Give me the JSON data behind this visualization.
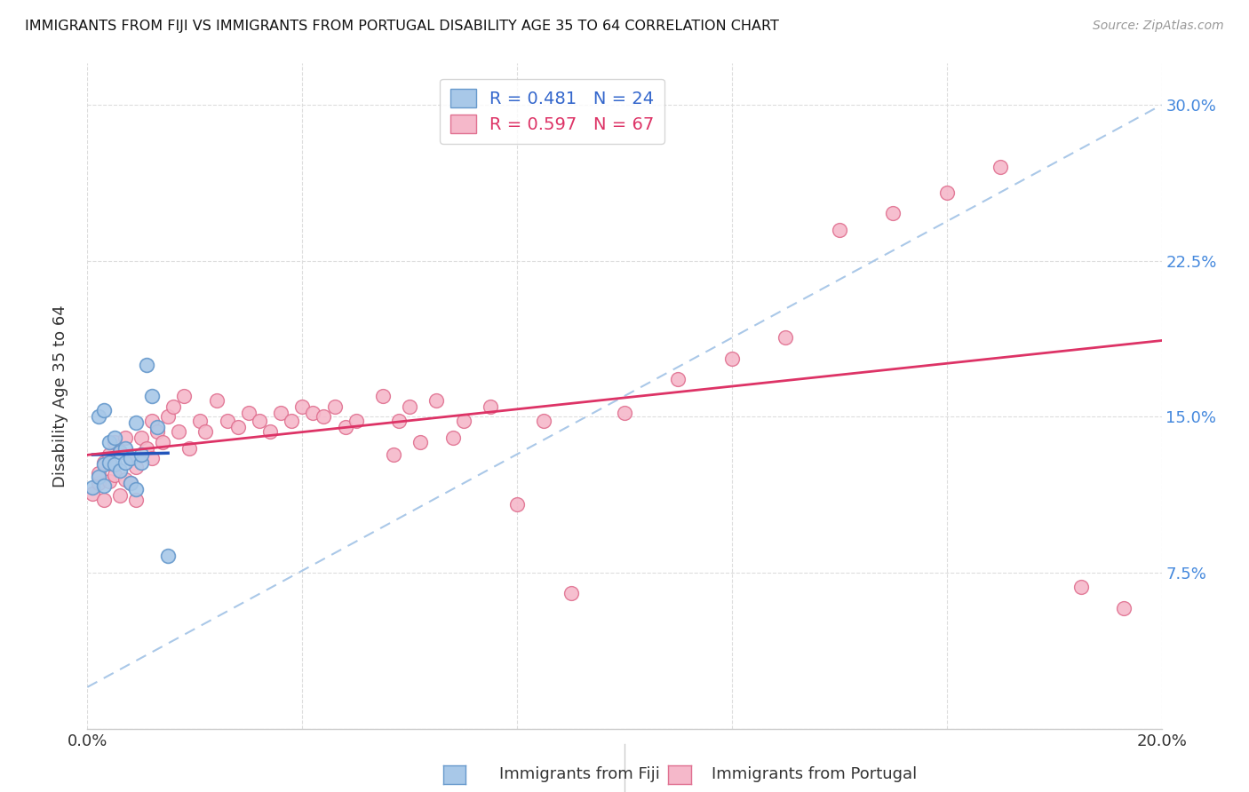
{
  "title": "IMMIGRANTS FROM FIJI VS IMMIGRANTS FROM PORTUGAL DISABILITY AGE 35 TO 64 CORRELATION CHART",
  "source": "Source: ZipAtlas.com",
  "ylabel": "Disability Age 35 to 64",
  "xlim": [
    0.0,
    0.2
  ],
  "ylim": [
    0.0,
    0.32
  ],
  "fiji_R": 0.481,
  "fiji_N": 24,
  "portugal_R": 0.597,
  "portugal_N": 67,
  "fiji_color": "#a8c8e8",
  "fiji_edge_color": "#6699cc",
  "portugal_color": "#f5b8ca",
  "portugal_edge_color": "#e07090",
  "fiji_trend_color": "#2255bb",
  "portugal_trend_color": "#dd3366",
  "diagonal_color": "#aac8e8",
  "fiji_x": [
    0.001,
    0.002,
    0.002,
    0.003,
    0.003,
    0.003,
    0.004,
    0.004,
    0.005,
    0.005,
    0.006,
    0.006,
    0.007,
    0.007,
    0.008,
    0.008,
    0.009,
    0.009,
    0.01,
    0.01,
    0.011,
    0.012,
    0.013,
    0.015
  ],
  "fiji_y": [
    0.116,
    0.15,
    0.121,
    0.117,
    0.153,
    0.127,
    0.128,
    0.138,
    0.127,
    0.14,
    0.124,
    0.133,
    0.128,
    0.135,
    0.118,
    0.13,
    0.115,
    0.147,
    0.128,
    0.132,
    0.175,
    0.16,
    0.145,
    0.083
  ],
  "portugal_x": [
    0.001,
    0.002,
    0.002,
    0.003,
    0.003,
    0.004,
    0.004,
    0.005,
    0.005,
    0.006,
    0.006,
    0.007,
    0.007,
    0.008,
    0.008,
    0.009,
    0.009,
    0.01,
    0.01,
    0.011,
    0.012,
    0.012,
    0.013,
    0.014,
    0.015,
    0.016,
    0.017,
    0.018,
    0.019,
    0.021,
    0.022,
    0.024,
    0.026,
    0.028,
    0.03,
    0.032,
    0.034,
    0.036,
    0.038,
    0.04,
    0.042,
    0.044,
    0.046,
    0.048,
    0.05,
    0.055,
    0.057,
    0.058,
    0.06,
    0.062,
    0.065,
    0.068,
    0.07,
    0.075,
    0.08,
    0.085,
    0.09,
    0.1,
    0.11,
    0.12,
    0.13,
    0.14,
    0.15,
    0.16,
    0.17,
    0.185,
    0.193
  ],
  "portugal_y": [
    0.113,
    0.118,
    0.123,
    0.11,
    0.128,
    0.119,
    0.132,
    0.122,
    0.138,
    0.112,
    0.133,
    0.12,
    0.14,
    0.118,
    0.13,
    0.11,
    0.126,
    0.132,
    0.14,
    0.135,
    0.13,
    0.148,
    0.143,
    0.138,
    0.15,
    0.155,
    0.143,
    0.16,
    0.135,
    0.148,
    0.143,
    0.158,
    0.148,
    0.145,
    0.152,
    0.148,
    0.143,
    0.152,
    0.148,
    0.155,
    0.152,
    0.15,
    0.155,
    0.145,
    0.148,
    0.16,
    0.132,
    0.148,
    0.155,
    0.138,
    0.158,
    0.14,
    0.148,
    0.155,
    0.108,
    0.148,
    0.065,
    0.152,
    0.168,
    0.178,
    0.188,
    0.24,
    0.248,
    0.258,
    0.27,
    0.068,
    0.058
  ]
}
